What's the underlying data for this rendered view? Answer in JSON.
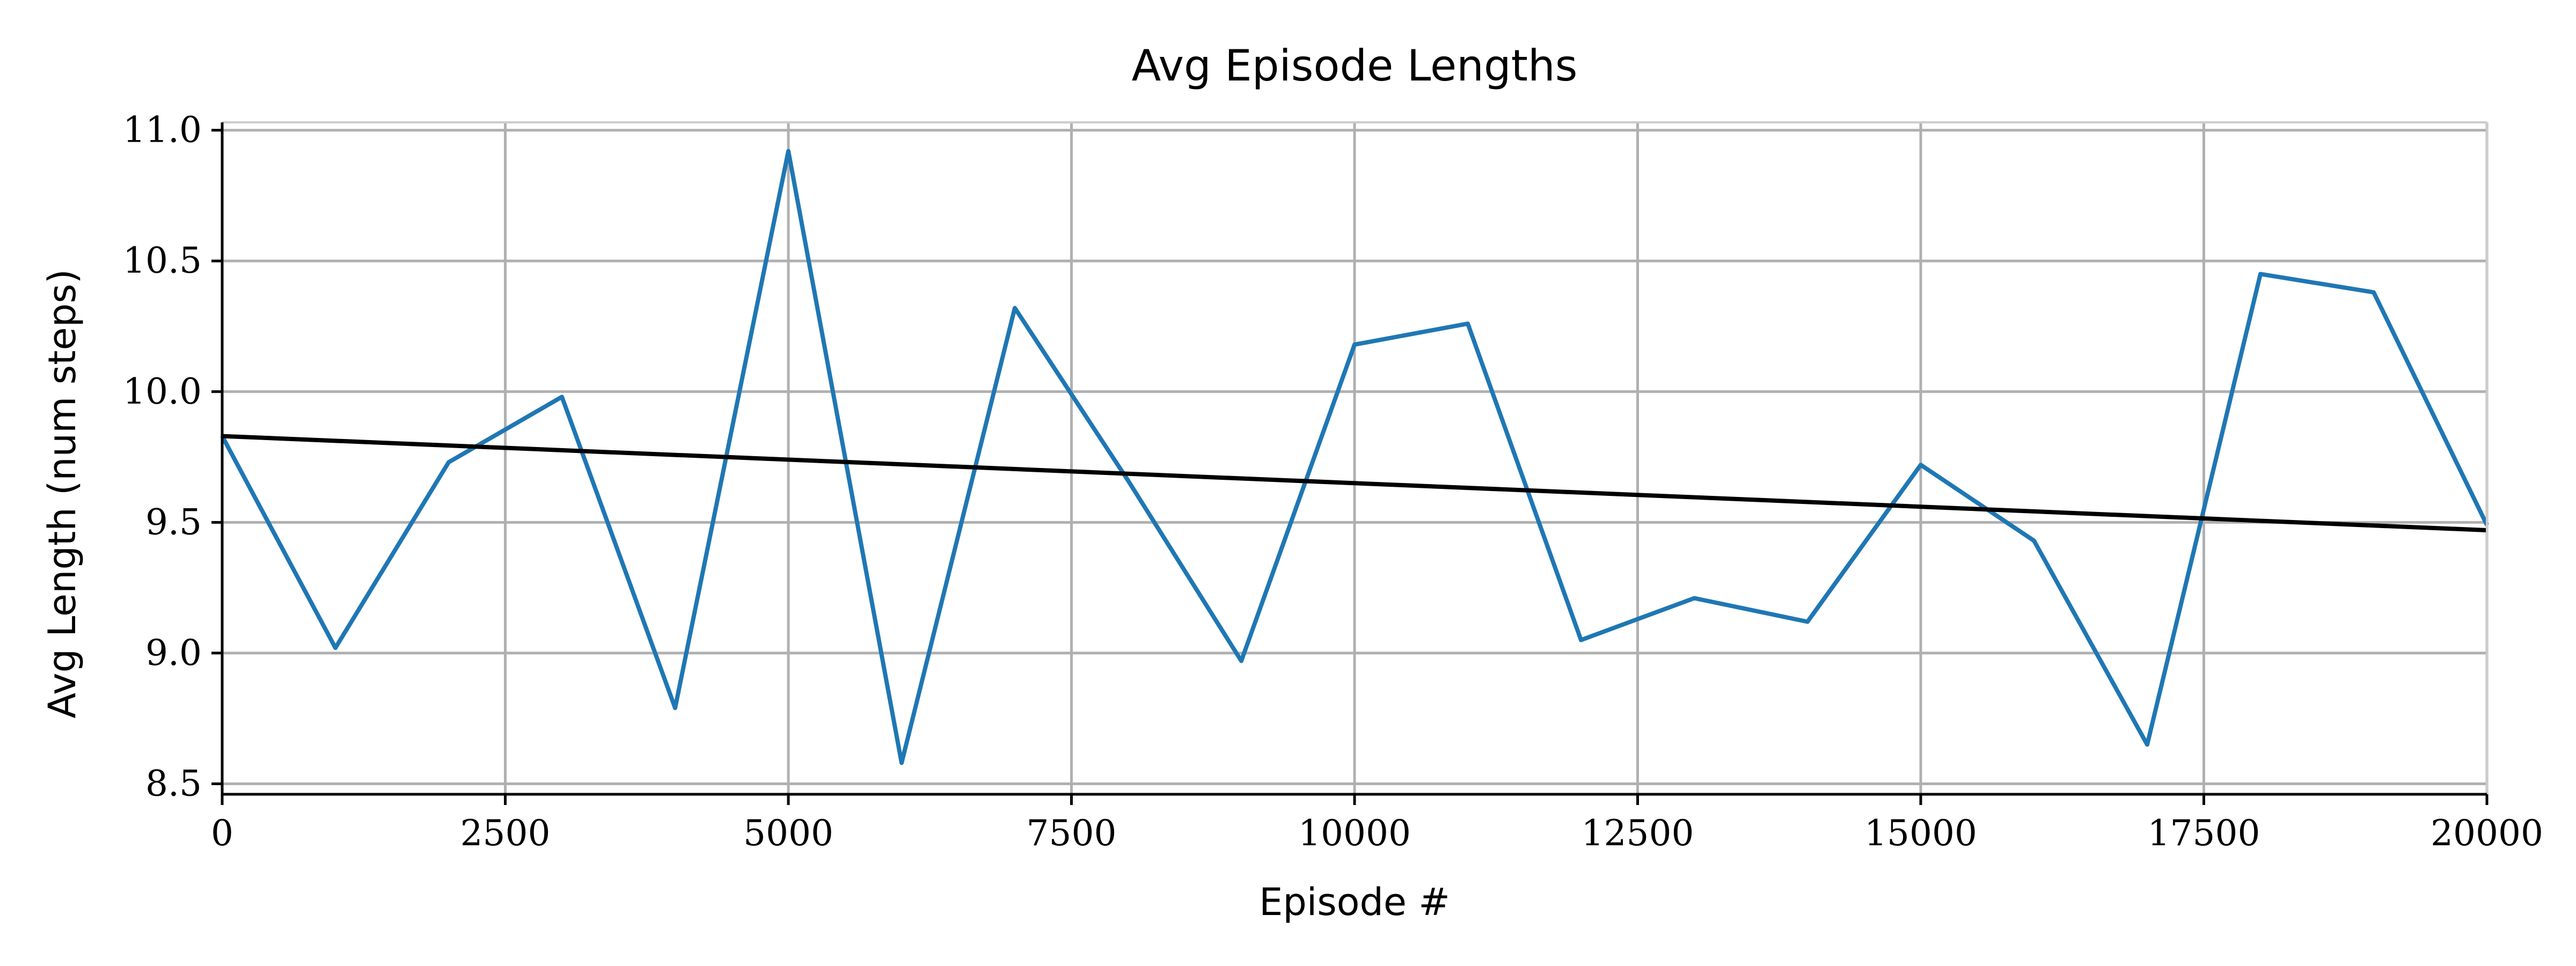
{
  "chart_data": {
    "type": "line",
    "title": "Avg Episode Lengths",
    "xlabel": "Episode #",
    "ylabel": "Avg Length (num steps)",
    "xlim": [
      0,
      20000
    ],
    "ylim": [
      8.5,
      11.0
    ],
    "xticks": [
      0,
      2500,
      5000,
      7500,
      10000,
      12500,
      15000,
      17500,
      20000
    ],
    "xtick_labels": [
      "0",
      "2500",
      "5000",
      "7500",
      "10000",
      "12500",
      "15000",
      "17500",
      "20000"
    ],
    "yticks": [
      8.5,
      9.0,
      9.5,
      10.0,
      10.5,
      11.0
    ],
    "ytick_labels": [
      "8.5",
      "9.0",
      "9.5",
      "10.0",
      "10.5",
      "11.0"
    ],
    "grid": true,
    "series": [
      {
        "color": "#1f77b4",
        "x": [
          0,
          1000,
          2000,
          3000,
          4000,
          5000,
          6000,
          7000,
          8000,
          9000,
          10000,
          11000,
          12000,
          13000,
          14000,
          15000,
          16000,
          17000,
          18000,
          19000,
          20000
        ],
        "y": [
          9.83,
          9.02,
          9.73,
          9.98,
          8.79,
          10.92,
          8.58,
          10.32,
          9.66,
          8.97,
          10.18,
          10.26,
          9.05,
          9.21,
          9.12,
          9.72,
          9.43,
          8.65,
          10.45,
          10.38,
          9.49
        ]
      },
      {
        "color": "#000000",
        "x": [
          0,
          20000
        ],
        "y": [
          9.83,
          9.47
        ]
      }
    ]
  }
}
